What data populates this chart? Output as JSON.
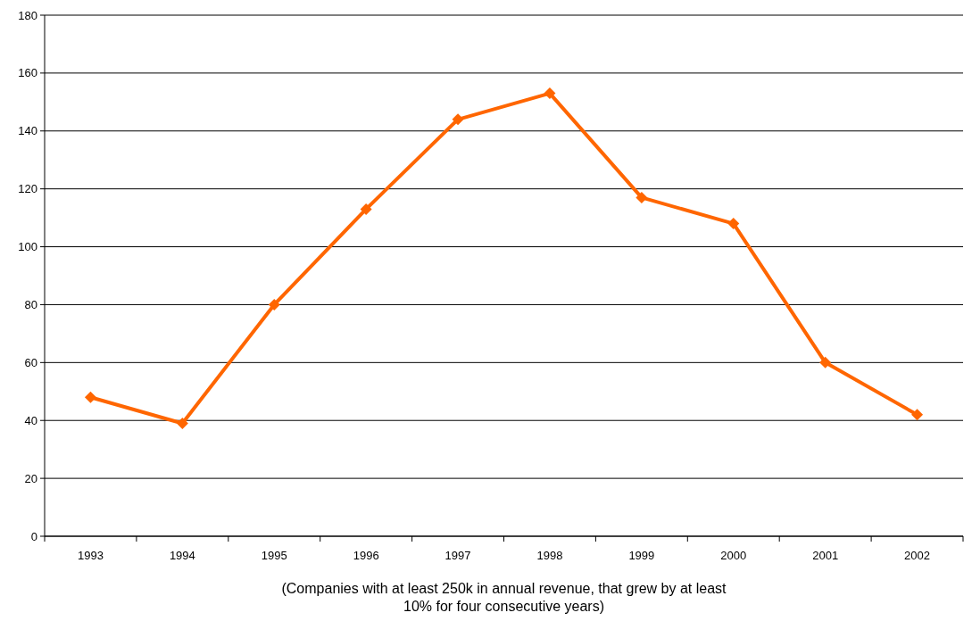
{
  "chart_data": {
    "type": "line",
    "categories": [
      "1993",
      "1994",
      "1995",
      "1996",
      "1997",
      "1998",
      "1999",
      "2000",
      "2001",
      "2002"
    ],
    "series": [
      {
        "color": "#ff6600",
        "values": [
          48,
          39,
          80,
          113,
          144,
          153,
          117,
          108,
          60,
          42
        ]
      }
    ],
    "xlabel": "(Companies with at least 250k in annual revenue, that grew by at least 10% for four consecutive years)",
    "ylim": [
      0,
      180
    ],
    "yticks": [
      0,
      20,
      40,
      60,
      80,
      100,
      120,
      140,
      160,
      180
    ],
    "grid": "y",
    "marker": "diamond",
    "line_style": "solid"
  }
}
